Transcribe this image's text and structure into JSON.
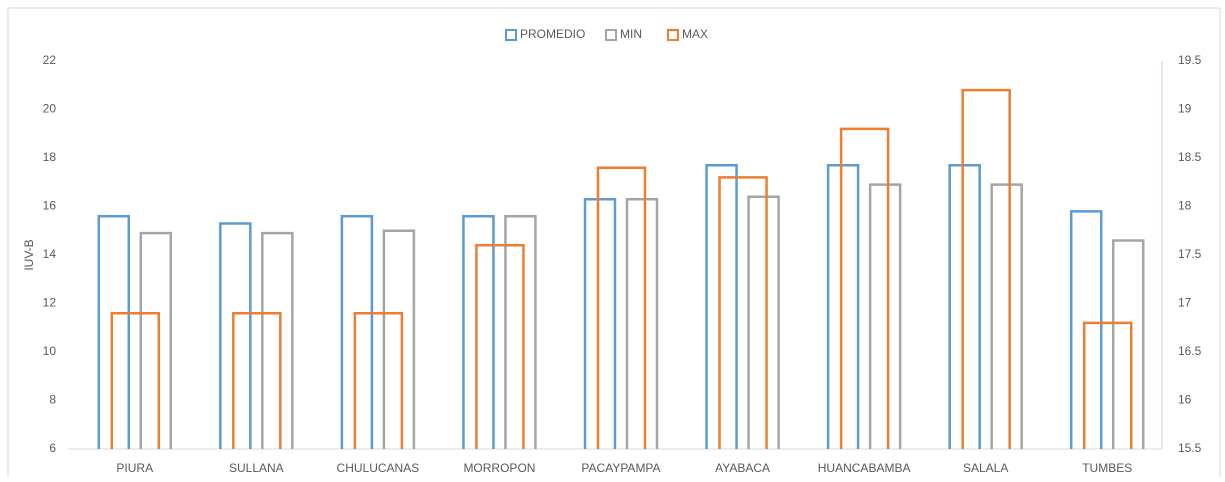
{
  "chart_data": {
    "type": "bar",
    "ylabel": "IUV-B",
    "categories": [
      "PIURA",
      "SULLANA",
      "CHULUCANAS",
      "MORROPON",
      "PACAYPAMPA",
      "AYABACA",
      "HUANCABAMBA",
      "SALALA",
      "TUMBES"
    ],
    "series": [
      {
        "name": "PROMEDIO",
        "color": "#5b9bd5",
        "values": [
          15.6,
          15.3,
          15.6,
          15.6,
          16.3,
          17.7,
          17.7,
          17.7,
          15.8
        ]
      },
      {
        "name": "MIN",
        "color": "#a5a5a5",
        "values": [
          14.9,
          14.9,
          15.0,
          15.6,
          16.3,
          16.4,
          16.9,
          16.9,
          14.6
        ]
      },
      {
        "name": "MAX",
        "color": "#ed7d31",
        "axis": "y2",
        "values": [
          16.9,
          16.9,
          16.9,
          17.6,
          18.4,
          18.3,
          18.8,
          19.2,
          16.8
        ]
      }
    ],
    "ylim": [
      6,
      22
    ],
    "yticks": [
      6,
      8,
      10,
      12,
      14,
      16,
      18,
      20,
      22
    ],
    "y2lim": [
      15.5,
      19.5
    ],
    "y2ticks": [
      15.5,
      16,
      16.5,
      17,
      17.5,
      18,
      18.5,
      19,
      19.5
    ],
    "grid": false,
    "legend": "top"
  }
}
